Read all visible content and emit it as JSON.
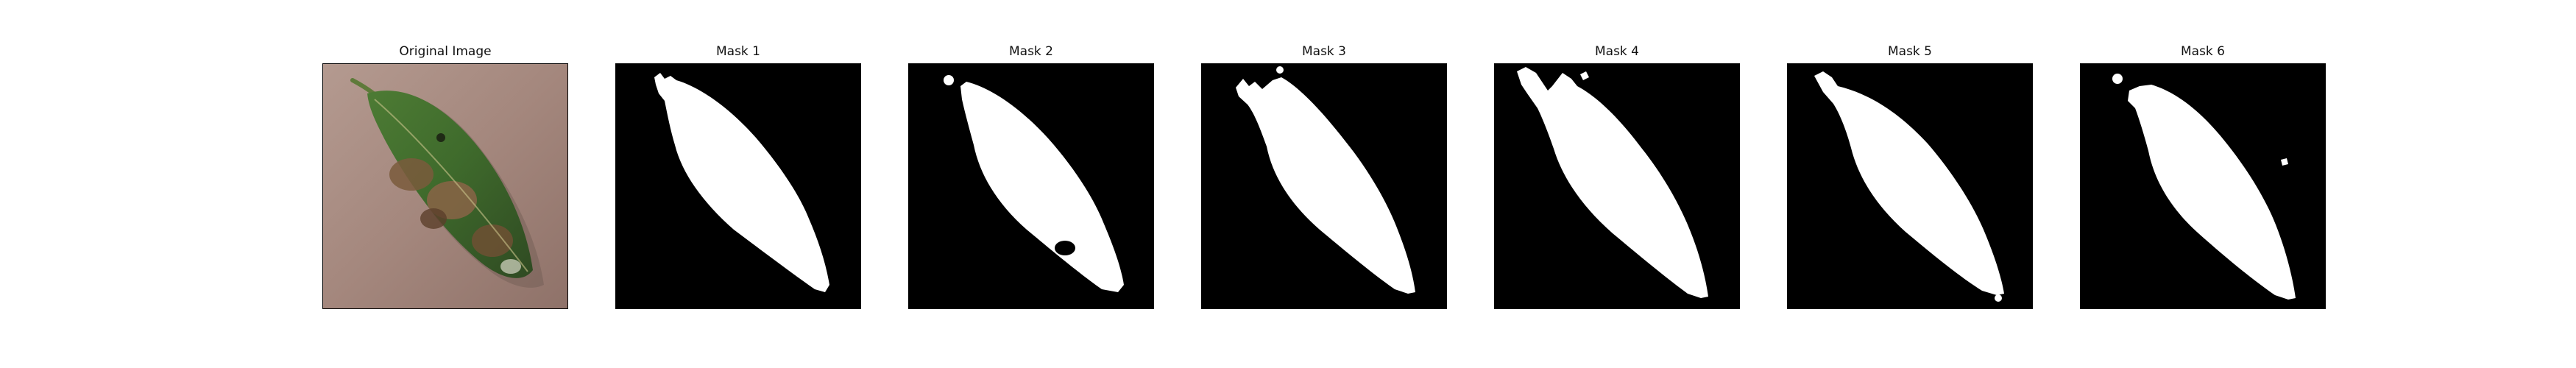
{
  "figure": {
    "panels": [
      {
        "title": "Original Image",
        "kind": "photo",
        "subject": "leaf-photo"
      },
      {
        "title": "Mask 1",
        "kind": "mask"
      },
      {
        "title": "Mask 2",
        "kind": "mask"
      },
      {
        "title": "Mask 3",
        "kind": "mask"
      },
      {
        "title": "Mask 4",
        "kind": "mask"
      },
      {
        "title": "Mask 5",
        "kind": "mask"
      },
      {
        "title": "Mask 6",
        "kind": "mask"
      }
    ],
    "colors": {
      "background": "#ffffff",
      "mask_background": "#000000",
      "mask_foreground": "#ffffff",
      "photo_background": "#a88a80",
      "leaf_green": "#3f6b2c",
      "leaf_dark": "#2b3f1e",
      "lesion_brown": "#7a5a3c"
    }
  }
}
